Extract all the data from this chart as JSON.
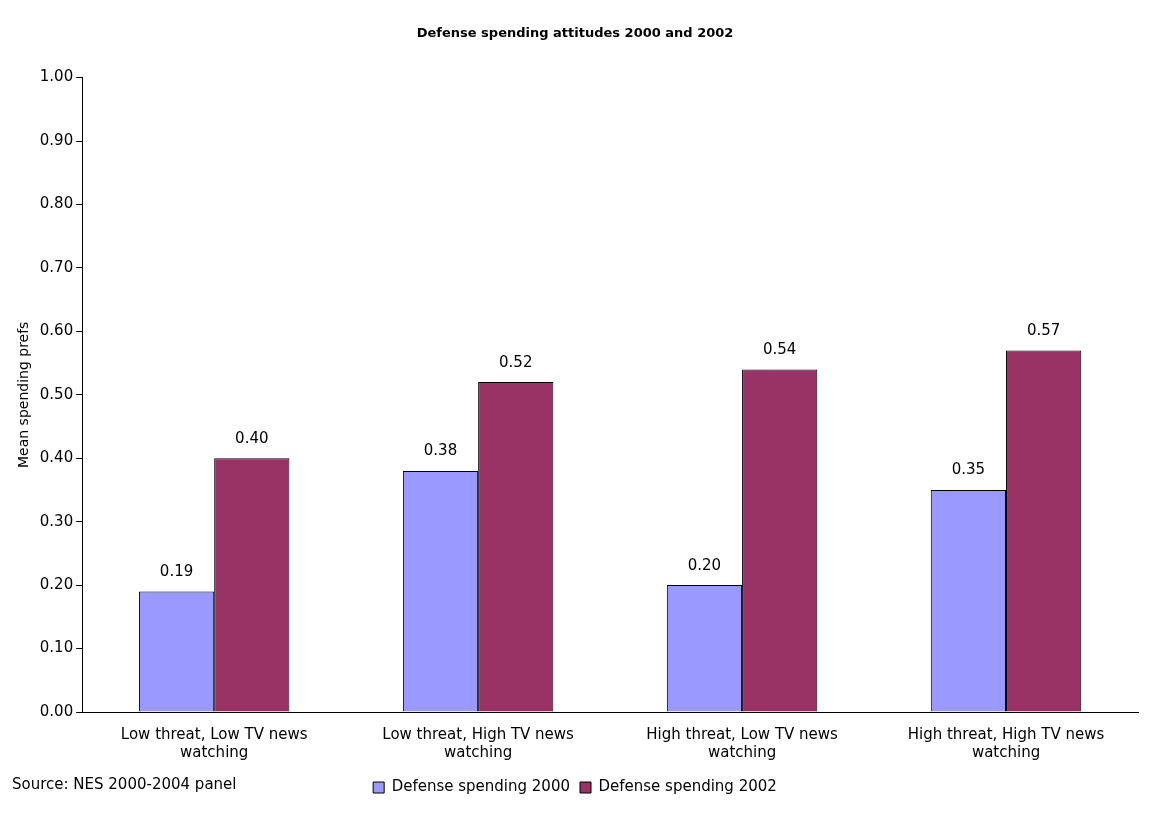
{
  "chart_data": {
    "type": "bar",
    "title": "Defense spending attitudes 2000 and 2002",
    "ylabel": "Mean spending prefs",
    "categories": [
      "Low threat, Low TV news watching",
      "Low threat, High TV news watching",
      "High threat, Low TV news watching",
      "High threat, High TV news watching"
    ],
    "series": [
      {
        "name": "Defense spending 2000",
        "color": "#9999ff",
        "values": [
          0.19,
          0.38,
          0.2,
          0.35
        ],
        "value_labels": [
          "0.19",
          "0.38",
          "0.20",
          "0.35"
        ]
      },
      {
        "name": "Defense spending 2002",
        "color": "#993366",
        "values": [
          0.4,
          0.52,
          0.54,
          0.57
        ],
        "value_labels": [
          "0.40",
          "0.52",
          "0.54",
          "0.57"
        ]
      }
    ],
    "ylim": [
      0,
      1
    ],
    "yticks": [
      {
        "value": 0,
        "label": "0.00"
      },
      {
        "value": 0.1,
        "label": "0.10"
      },
      {
        "value": 0.2,
        "label": "0.20"
      },
      {
        "value": 0.3,
        "label": "0.30"
      },
      {
        "value": 0.4,
        "label": "0.40"
      },
      {
        "value": 0.5,
        "label": "0.50"
      },
      {
        "value": 0.6,
        "label": "0.60"
      },
      {
        "value": 0.7,
        "label": "0.70"
      },
      {
        "value": 0.8,
        "label": "0.80"
      },
      {
        "value": 0.9,
        "label": "0.90"
      },
      {
        "value": 1,
        "label": "1.00"
      }
    ],
    "grid": false,
    "legend": "bottom",
    "annotations": [
      "Source: NES 2000-2004 panel"
    ]
  }
}
